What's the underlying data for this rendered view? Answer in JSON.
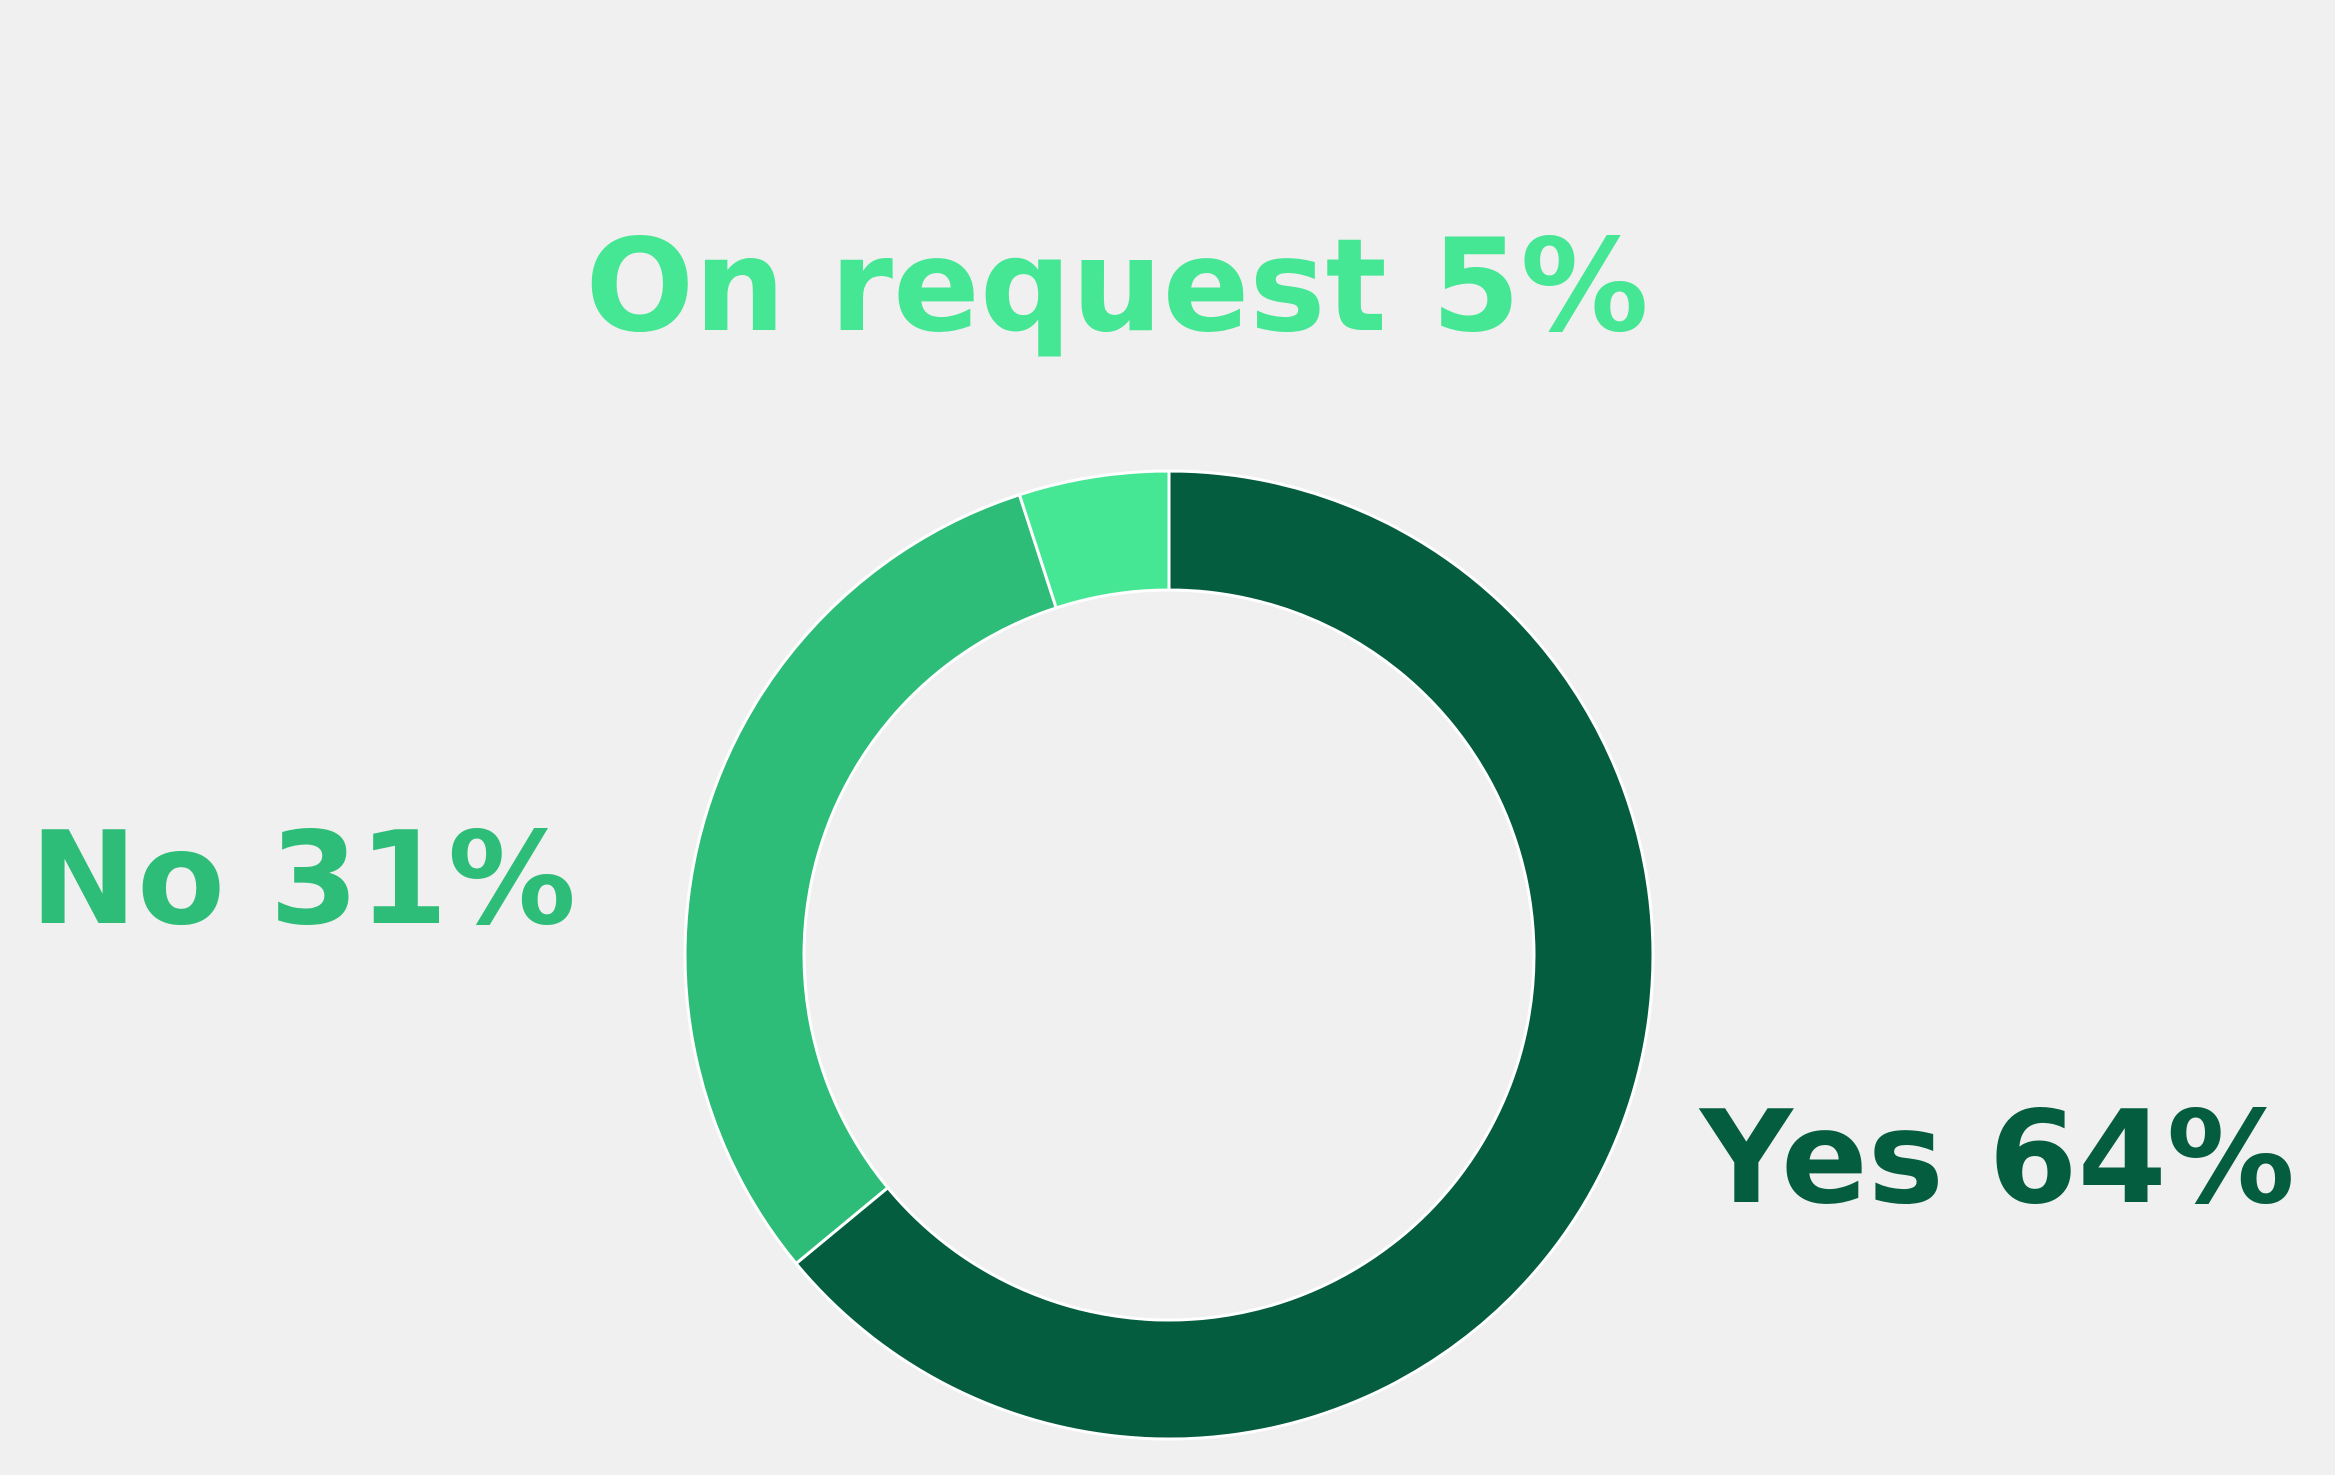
{
  "chart_data": {
    "type": "donut",
    "categories": [
      "Yes",
      "No",
      "On request"
    ],
    "values": [
      64,
      31,
      5
    ],
    "value_labels": [
      "64%",
      "31%",
      "5%"
    ],
    "colors": [
      "#045d3e",
      "#2dbd78",
      "#45e694"
    ]
  }
}
